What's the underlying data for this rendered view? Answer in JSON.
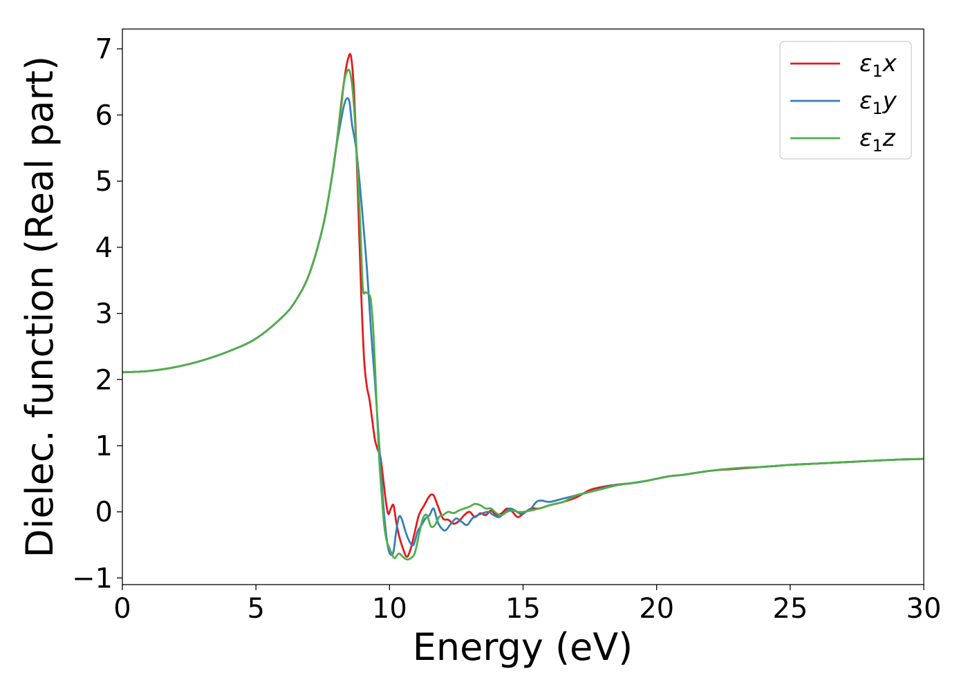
{
  "chart_data": {
    "type": "line",
    "xlabel": "Energy (eV)",
    "ylabel": "Dielec. function (Real part)",
    "xlim": [
      0,
      30
    ],
    "ylim": [
      -1.1,
      7.3
    ],
    "xticks": [
      0,
      5,
      10,
      15,
      20,
      25,
      30
    ],
    "xtick_labels": [
      "0",
      "5",
      "10",
      "15",
      "20",
      "25",
      "30"
    ],
    "yticks": [
      -1,
      0,
      1,
      2,
      3,
      4,
      5,
      6,
      7
    ],
    "ytick_labels": [
      "−1",
      "0",
      "1",
      "2",
      "3",
      "4",
      "5",
      "6",
      "7"
    ],
    "grid": false,
    "legend_position": "top-right",
    "series": [
      {
        "name": "ε1x",
        "legend_base": "ε",
        "legend_sub": "1",
        "legend_var": "x",
        "color": "#e41a1c",
        "x": [
          0,
          1,
          2,
          3,
          4,
          5,
          6,
          6.5,
          7,
          7.5,
          7.8,
          8,
          8.2,
          8.35,
          8.45,
          8.55,
          8.65,
          8.75,
          8.85,
          8.95,
          9.05,
          9.15,
          9.25,
          9.35,
          9.45,
          9.55,
          9.65,
          9.75,
          9.85,
          9.95,
          10.05,
          10.15,
          10.25,
          10.35,
          10.5,
          10.65,
          10.8,
          10.95,
          11.1,
          11.3,
          11.5,
          11.65,
          11.8,
          12,
          12.2,
          12.4,
          12.6,
          12.8,
          13,
          13.2,
          13.4,
          13.6,
          13.8,
          14,
          14.2,
          14.4,
          14.6,
          14.8,
          15,
          15.3,
          15.6,
          16,
          16.5,
          17,
          17.5,
          18,
          18.5,
          19,
          19.5,
          20,
          20.5,
          21,
          22,
          23,
          24,
          25,
          26,
          27,
          28,
          29,
          30
        ],
        "y": [
          2.11,
          2.13,
          2.19,
          2.29,
          2.43,
          2.62,
          2.95,
          3.2,
          3.6,
          4.3,
          4.95,
          5.5,
          6.2,
          6.65,
          6.85,
          6.9,
          6.5,
          5.6,
          4.4,
          3.2,
          2.3,
          1.9,
          1.7,
          1.4,
          1.1,
          0.95,
          0.85,
          0.55,
          0.2,
          -0.03,
          0.05,
          0.1,
          -0.15,
          -0.35,
          -0.55,
          -0.68,
          -0.55,
          -0.3,
          -0.05,
          0.1,
          0.24,
          0.25,
          0.1,
          -0.1,
          -0.12,
          -0.18,
          -0.14,
          -0.05,
          0.0,
          -0.08,
          -0.02,
          -0.05,
          0.02,
          -0.05,
          -0.02,
          0.05,
          0.0,
          -0.08,
          -0.03,
          0.05,
          0.05,
          0.1,
          0.15,
          0.22,
          0.33,
          0.38,
          0.41,
          0.43,
          0.46,
          0.5,
          0.54,
          0.56,
          0.62,
          0.65,
          0.68,
          0.71,
          0.73,
          0.75,
          0.77,
          0.79,
          0.8
        ]
      },
      {
        "name": "ε1y",
        "legend_base": "ε",
        "legend_sub": "1",
        "legend_var": "y",
        "color": "#377eb8",
        "x": [
          0,
          1,
          2,
          3,
          4,
          5,
          6,
          6.5,
          7,
          7.5,
          7.8,
          8,
          8.2,
          8.3,
          8.4,
          8.5,
          8.6,
          8.75,
          8.9,
          9.05,
          9.15,
          9.25,
          9.35,
          9.45,
          9.55,
          9.65,
          9.75,
          9.85,
          9.95,
          10.05,
          10.15,
          10.25,
          10.35,
          10.45,
          10.6,
          10.75,
          10.9,
          11.05,
          11.2,
          11.35,
          11.5,
          11.65,
          11.8,
          11.95,
          12.1,
          12.3,
          12.5,
          12.7,
          12.9,
          13.1,
          13.3,
          13.5,
          13.7,
          13.9,
          14.1,
          14.3,
          14.5,
          14.7,
          14.9,
          15.1,
          15.3,
          15.5,
          15.7,
          16,
          16.5,
          17,
          17.5,
          18,
          18.5,
          19,
          19.5,
          20,
          20.5,
          21,
          22,
          23,
          24,
          25,
          26,
          27,
          28,
          29,
          30
        ],
        "y": [
          2.11,
          2.13,
          2.19,
          2.29,
          2.43,
          2.62,
          2.95,
          3.2,
          3.6,
          4.3,
          4.95,
          5.5,
          5.95,
          6.15,
          6.25,
          6.2,
          5.85,
          5.5,
          4.9,
          4.2,
          3.7,
          3.1,
          2.5,
          2.0,
          1.4,
          0.8,
          0.2,
          -0.25,
          -0.55,
          -0.65,
          -0.6,
          -0.3,
          -0.08,
          -0.1,
          -0.3,
          -0.45,
          -0.5,
          -0.3,
          -0.2,
          -0.1,
          -0.05,
          0.05,
          -0.15,
          -0.25,
          -0.28,
          -0.18,
          -0.1,
          -0.15,
          -0.2,
          -0.1,
          -0.05,
          -0.02,
          0.0,
          -0.05,
          -0.08,
          -0.02,
          0.05,
          0.02,
          -0.03,
          0.0,
          0.05,
          0.15,
          0.17,
          0.15,
          0.2,
          0.25,
          0.3,
          0.36,
          0.41,
          0.43,
          0.46,
          0.5,
          0.54,
          0.56,
          0.62,
          0.66,
          0.68,
          0.71,
          0.73,
          0.75,
          0.77,
          0.79,
          0.8
        ]
      },
      {
        "name": "ε1z",
        "legend_base": "ε",
        "legend_sub": "1",
        "legend_var": "z",
        "color": "#4daf4a",
        "x": [
          0,
          1,
          2,
          3,
          4,
          5,
          6,
          6.5,
          7,
          7.5,
          7.8,
          8,
          8.2,
          8.3,
          8.4,
          8.5,
          8.6,
          8.7,
          8.8,
          8.9,
          9.0,
          9.1,
          9.2,
          9.3,
          9.4,
          9.5,
          9.6,
          9.7,
          9.8,
          9.9,
          10.0,
          10.1,
          10.2,
          10.35,
          10.5,
          10.65,
          10.8,
          10.95,
          11.1,
          11.25,
          11.4,
          11.55,
          11.7,
          11.85,
          12.0,
          12.2,
          12.4,
          12.6,
          12.8,
          13.0,
          13.2,
          13.4,
          13.6,
          13.8,
          14.0,
          14.2,
          14.4,
          14.6,
          14.8,
          15.0,
          15.3,
          15.6,
          16,
          16.5,
          17,
          17.5,
          18,
          18.5,
          19,
          19.5,
          20,
          20.5,
          21,
          22,
          23,
          24,
          25,
          26,
          27,
          28,
          29,
          30
        ],
        "y": [
          2.11,
          2.13,
          2.19,
          2.29,
          2.43,
          2.62,
          2.95,
          3.2,
          3.6,
          4.3,
          4.95,
          5.5,
          6.15,
          6.5,
          6.65,
          6.67,
          6.45,
          5.95,
          5.2,
          4.4,
          3.4,
          3.32,
          3.3,
          3.2,
          2.7,
          1.8,
          0.9,
          0.3,
          -0.2,
          -0.45,
          -0.55,
          -0.65,
          -0.7,
          -0.63,
          -0.68,
          -0.72,
          -0.7,
          -0.62,
          -0.35,
          -0.1,
          -0.05,
          -0.22,
          -0.2,
          -0.08,
          -0.05,
          0.0,
          -0.02,
          0.02,
          0.05,
          0.08,
          0.12,
          0.1,
          0.05,
          0.05,
          -0.02,
          -0.05,
          0.0,
          0.02,
          0.0,
          0.0,
          0.02,
          0.05,
          0.1,
          0.15,
          0.25,
          0.3,
          0.35,
          0.4,
          0.43,
          0.46,
          0.5,
          0.54,
          0.56,
          0.62,
          0.66,
          0.68,
          0.71,
          0.73,
          0.75,
          0.77,
          0.79,
          0.8
        ]
      }
    ]
  }
}
